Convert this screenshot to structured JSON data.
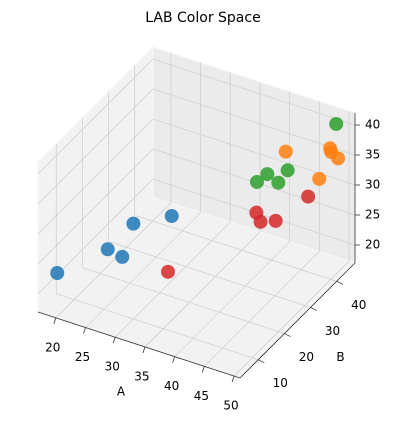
{
  "chart_data": {
    "type": "scatter3d",
    "title": "LAB Color Space",
    "xlabel": "A",
    "ylabel": "B",
    "xlim": [
      17,
      51
    ],
    "xticks": [
      20,
      25,
      30,
      35,
      40,
      45,
      50
    ],
    "ylim": [
      3,
      47
    ],
    "yticks": [
      10,
      20,
      30,
      40
    ],
    "zlim": [
      17,
      42
    ],
    "zticks": [
      20,
      25,
      30,
      35,
      40
    ],
    "grid": true,
    "series": [
      {
        "color": "#1f77b4",
        "x": [
          18.3,
          21.7,
          22.6,
          23.6,
          27.5
        ],
        "y": [
          7.4,
          19,
          22.5,
          24.5,
          30.3
        ],
        "z": [
          22,
          22,
          19.5,
          24.5,
          24.5
        ]
      },
      {
        "color": "#d62728",
        "x": [
          30.3,
          38.8,
          39.5,
          41.3,
          45
        ],
        "y": [
          22.5,
          37,
          37,
          38.7,
          42.7
        ],
        "z": [
          19.5,
          25.8,
          24.5,
          24.5,
          28
        ]
      },
      {
        "color": "#2ca02c",
        "x": [
          37.8,
          39.1,
          40.6,
          41.2,
          48.1
        ],
        "y": [
          39.5,
          40.5,
          41.3,
          43.5,
          46.4
        ],
        "z": [
          29.5,
          30.8,
          29.5,
          30.8,
          39.5
        ]
      },
      {
        "color": "#ff7f0e",
        "x": [
          40.5,
          46.3,
          47.6,
          47.6,
          48.9
        ],
        "y": [
          44.4,
          44,
          45.2,
          45.6,
          45.3
        ],
        "z": [
          33.3,
          30.8,
          35.8,
          35,
          34.5
        ]
      }
    ]
  }
}
